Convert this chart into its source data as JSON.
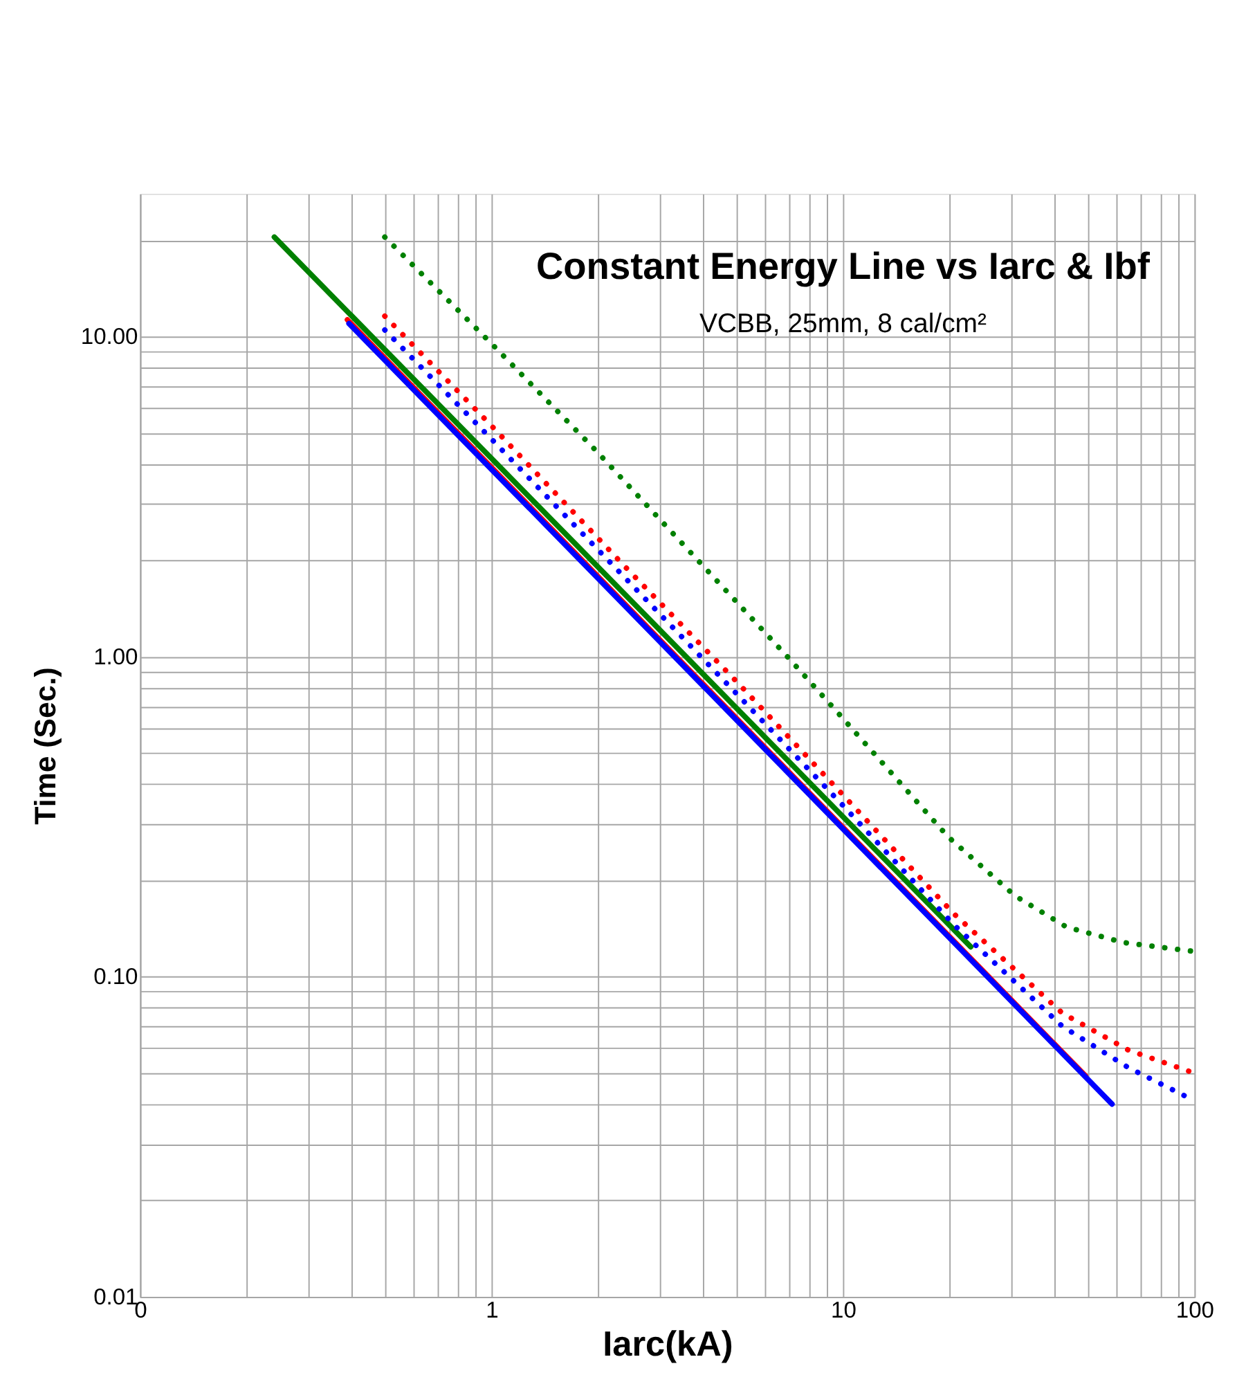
{
  "chart_data": {
    "type": "line",
    "title": "Constant Energy Line vs Iarc & Ibf",
    "subtitle": "VCBB, 25mm, 8 cal/cm²",
    "xlabel": "Iarc(kA)",
    "ylabel": "Time (Sec.)",
    "log": "xy",
    "grid": true,
    "legend": false,
    "xlim": [
      0.1,
      100
    ],
    "ylim": [
      0.01,
      28
    ],
    "xticks": [
      {
        "value": 0.1,
        "label": "0"
      },
      {
        "value": 0.2,
        "label": null
      },
      {
        "value": 0.3,
        "label": null
      },
      {
        "value": 0.4,
        "label": null
      },
      {
        "value": 0.5,
        "label": null
      },
      {
        "value": 0.6,
        "label": null
      },
      {
        "value": 0.7,
        "label": null
      },
      {
        "value": 0.8,
        "label": null
      },
      {
        "value": 0.9,
        "label": null
      },
      1,
      {
        "value": 2,
        "label": null
      },
      {
        "value": 3,
        "label": null
      },
      {
        "value": 4,
        "label": null
      },
      {
        "value": 5,
        "label": null
      },
      {
        "value": 6,
        "label": null
      },
      {
        "value": 7,
        "label": null
      },
      {
        "value": 8,
        "label": null
      },
      {
        "value": 9,
        "label": null
      },
      10,
      {
        "value": 20,
        "label": null
      },
      {
        "value": 30,
        "label": null
      },
      {
        "value": 40,
        "label": null
      },
      {
        "value": 50,
        "label": null
      },
      {
        "value": 60,
        "label": null
      },
      {
        "value": 70,
        "label": null
      },
      {
        "value": 80,
        "label": null
      },
      {
        "value": 90,
        "label": null
      },
      100
    ],
    "yticks": [
      {
        "value": 0.01,
        "label": "0.01"
      },
      {
        "value": 0.02,
        "label": null
      },
      {
        "value": 0.03,
        "label": null
      },
      {
        "value": 0.04,
        "label": null
      },
      {
        "value": 0.05,
        "label": null
      },
      {
        "value": 0.06,
        "label": null
      },
      {
        "value": 0.07,
        "label": null
      },
      {
        "value": 0.08,
        "label": null
      },
      {
        "value": 0.09,
        "label": null
      },
      {
        "value": 0.1,
        "label": "0.10"
      },
      {
        "value": 0.2,
        "label": null
      },
      {
        "value": 0.3,
        "label": null
      },
      {
        "value": 0.4,
        "label": null
      },
      {
        "value": 0.5,
        "label": null
      },
      {
        "value": 0.6,
        "label": null
      },
      {
        "value": 0.7,
        "label": null
      },
      {
        "value": 0.8,
        "label": null
      },
      {
        "value": 0.9,
        "label": null
      },
      {
        "value": 1,
        "label": "1.00"
      },
      {
        "value": 2,
        "label": null
      },
      {
        "value": 3,
        "label": null
      },
      {
        "value": 4,
        "label": null
      },
      {
        "value": 5,
        "label": null
      },
      {
        "value": 6,
        "label": null
      },
      {
        "value": 7,
        "label": null
      },
      {
        "value": 8,
        "label": null
      },
      {
        "value": 9,
        "label": null
      },
      {
        "value": 10,
        "label": "10.00"
      },
      {
        "value": 20,
        "label": null
      }
    ],
    "series": [
      {
        "color": "#ff0000",
        "line_style": "solid",
        "x": [
          0.389,
          49
        ],
        "values": [
          11.3,
          0.049
        ]
      },
      {
        "color": "#0000ff",
        "line_style": "solid",
        "x": [
          0.393,
          58.3
        ],
        "values": [
          11.0,
          0.04
        ]
      },
      {
        "color": "#008000",
        "line_style": "solid",
        "x": [
          0.241,
          23.1
        ],
        "values": [
          20.5,
          0.124
        ]
      },
      {
        "color": "#ff0000",
        "line_style": "dotted",
        "x": [
          0.497,
          1,
          2.39,
          5.07,
          10,
          20.6,
          42.1,
          64.9,
          100
        ],
        "values": [
          11.6,
          5.27,
          1.92,
          0.82,
          0.37,
          0.158,
          0.077,
          0.059,
          0.05
        ]
      },
      {
        "color": "#0000ff",
        "line_style": "dotted",
        "x": [
          0.497,
          1,
          5.07,
          10,
          20.6,
          42.1,
          64.9,
          100
        ],
        "values": [
          10.5,
          4.79,
          0.751,
          0.343,
          0.146,
          0.07,
          0.052,
          0.041
        ]
      },
      {
        "color": "#008000",
        "line_style": "dotted",
        "x": [
          0.497,
          1,
          1.99,
          7.03,
          9.75,
          19.9,
          30.9,
          43.3,
          62.7,
          100
        ],
        "values": [
          20.5,
          9.52,
          4.39,
          0.987,
          0.662,
          0.274,
          0.179,
          0.143,
          0.128,
          0.12
        ]
      }
    ]
  }
}
